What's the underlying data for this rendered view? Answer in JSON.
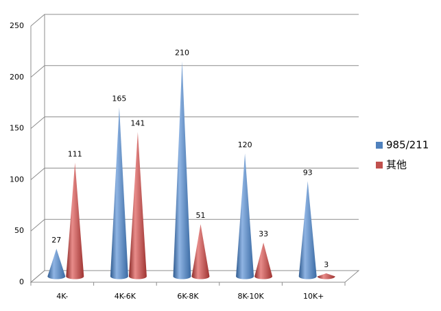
{
  "chart_data": {
    "type": "cone",
    "categories": [
      "4K-",
      "4K-6K",
      "6K-8K",
      "8K-10K",
      "10K+"
    ],
    "series": [
      {
        "name": "985/211",
        "color": "#4f81bd",
        "values": [
          27,
          165,
          210,
          120,
          93
        ]
      },
      {
        "name": "其他",
        "color": "#c0504d",
        "values": [
          111,
          141,
          51,
          33,
          3
        ]
      }
    ],
    "ylim": [
      0,
      250
    ],
    "yticks": [
      0,
      50,
      100,
      150,
      200,
      250
    ],
    "grid": true,
    "legend": "right"
  }
}
